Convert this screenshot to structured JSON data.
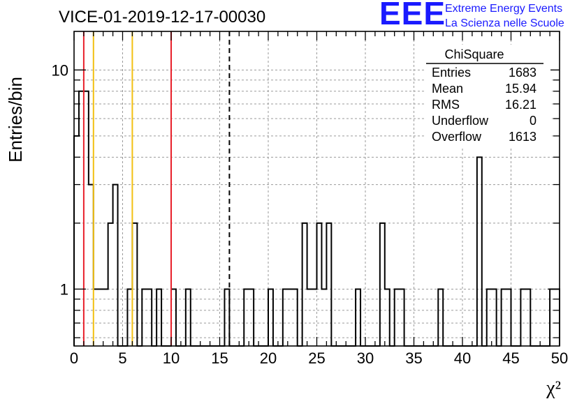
{
  "colors": {
    "axis": "#000000",
    "grid": "#9a9a9a",
    "histogram": "#000000",
    "line_red": "#e8202a",
    "line_yellow": "#f2c012",
    "line_dashed": "#000000",
    "logo": "#1a1aff"
  },
  "logo": {
    "mark": "EEE",
    "line1": "Extreme Energy Events",
    "line2": "La Scienza nelle Scuole"
  },
  "chart_data": {
    "type": "histogram",
    "title": "VICE-01-2019-12-17-00030",
    "xlabel": "χ²",
    "ylabel": "Entries/bin",
    "xlim": [
      0,
      50
    ],
    "ylim": [
      0.55,
      15
    ],
    "yscale": "log",
    "grid": true,
    "bin_width": 0.5,
    "x_ticks": [
      0,
      5,
      10,
      15,
      20,
      25,
      30,
      35,
      40,
      45,
      50
    ],
    "x_tick_labels": [
      "0",
      "5",
      "10",
      "15",
      "20",
      "25",
      "30",
      "35",
      "40",
      "45",
      "50"
    ],
    "y_tick_labels": [
      {
        "value": 1,
        "label": "1"
      },
      {
        "value": 10,
        "label": "10"
      }
    ],
    "bins": [
      {
        "x": 0.0,
        "count": 5
      },
      {
        "x": 0.5,
        "count": 8
      },
      {
        "x": 1.0,
        "count": 8
      },
      {
        "x": 1.5,
        "count": 3
      },
      {
        "x": 2.0,
        "count": 1
      },
      {
        "x": 2.5,
        "count": 1
      },
      {
        "x": 3.0,
        "count": 1
      },
      {
        "x": 3.5,
        "count": 2
      },
      {
        "x": 4.0,
        "count": 3
      },
      {
        "x": 5.5,
        "count": 1
      },
      {
        "x": 6.0,
        "count": 2
      },
      {
        "x": 7.0,
        "count": 1
      },
      {
        "x": 7.5,
        "count": 1
      },
      {
        "x": 8.5,
        "count": 1
      },
      {
        "x": 10.0,
        "count": 1
      },
      {
        "x": 11.5,
        "count": 1
      },
      {
        "x": 15.5,
        "count": 1
      },
      {
        "x": 17.5,
        "count": 1
      },
      {
        "x": 18.0,
        "count": 1
      },
      {
        "x": 20.0,
        "count": 1
      },
      {
        "x": 21.5,
        "count": 1
      },
      {
        "x": 22.0,
        "count": 1
      },
      {
        "x": 22.5,
        "count": 1
      },
      {
        "x": 23.5,
        "count": 2
      },
      {
        "x": 24.0,
        "count": 1
      },
      {
        "x": 24.5,
        "count": 1
      },
      {
        "x": 25.0,
        "count": 2
      },
      {
        "x": 25.5,
        "count": 1
      },
      {
        "x": 26.0,
        "count": 2
      },
      {
        "x": 29.0,
        "count": 1
      },
      {
        "x": 31.5,
        "count": 2
      },
      {
        "x": 32.0,
        "count": 1
      },
      {
        "x": 33.0,
        "count": 1
      },
      {
        "x": 33.5,
        "count": 1
      },
      {
        "x": 37.5,
        "count": 1
      },
      {
        "x": 41.5,
        "count": 4
      },
      {
        "x": 42.5,
        "count": 1
      },
      {
        "x": 43.0,
        "count": 1
      },
      {
        "x": 44.0,
        "count": 1
      },
      {
        "x": 44.5,
        "count": 1
      },
      {
        "x": 46.0,
        "count": 1
      },
      {
        "x": 46.5,
        "count": 1
      },
      {
        "x": 49.0,
        "count": 1
      },
      {
        "x": 49.5,
        "count": 1
      }
    ],
    "reference_lines": [
      {
        "x": 1.0,
        "color": "red",
        "style": "solid"
      },
      {
        "x": 2.0,
        "color": "yellow",
        "style": "solid"
      },
      {
        "x": 6.0,
        "color": "yellow",
        "style": "solid"
      },
      {
        "x": 10.0,
        "color": "red",
        "style": "solid"
      },
      {
        "x": 16.0,
        "color": "black",
        "style": "dashed"
      }
    ],
    "stats_box": {
      "title": "ChiSquare",
      "rows": [
        {
          "label": "Entries",
          "value": "1683"
        },
        {
          "label": "Mean",
          "value": "15.94"
        },
        {
          "label": "RMS",
          "value": "16.21"
        },
        {
          "label": "Underflow",
          "value": "0"
        },
        {
          "label": "Overflow",
          "value": "1613"
        }
      ]
    }
  }
}
